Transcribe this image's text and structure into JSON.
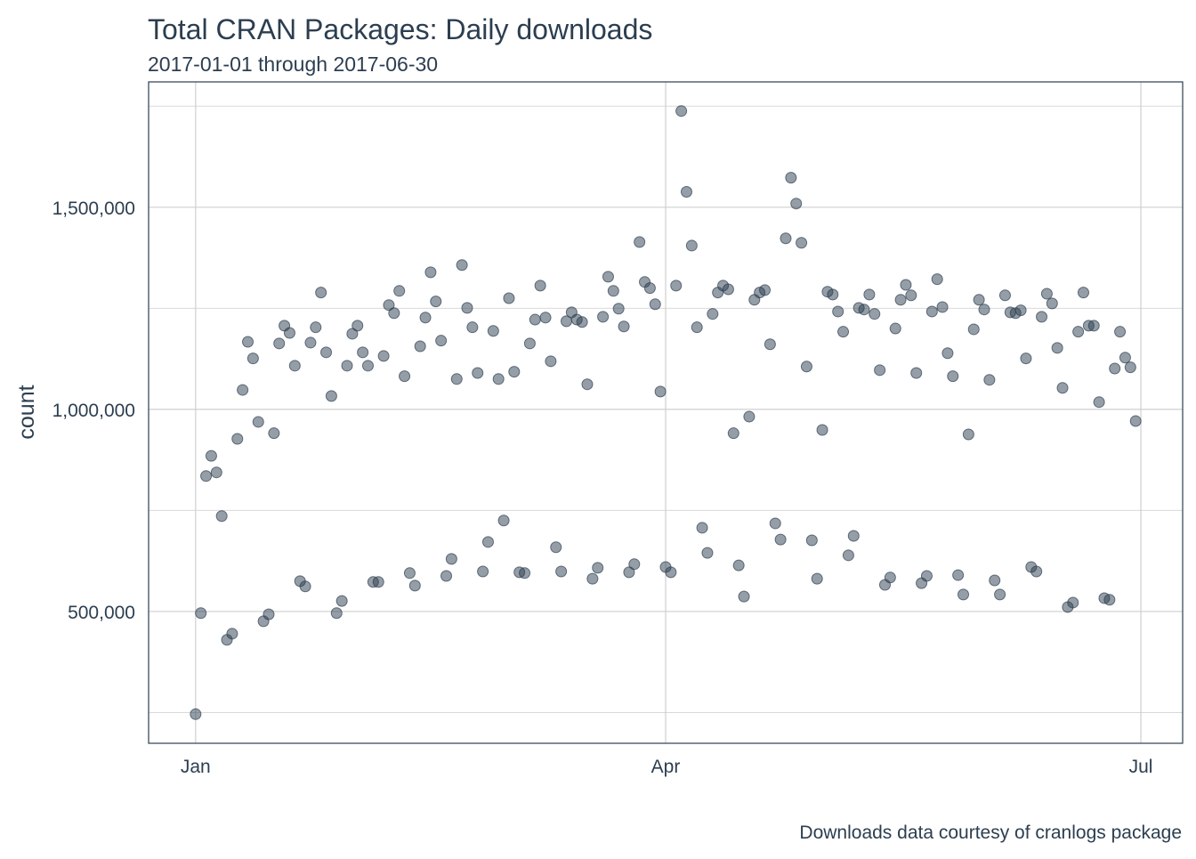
{
  "chart_data": {
    "type": "scatter",
    "title": "Total CRAN Packages: Daily downloads",
    "subtitle": "2017-01-01 through 2017-06-30",
    "y_label": "count",
    "caption": "Downloads data courtesy of cranlogs package",
    "color": "#2c3e50",
    "grid": true,
    "xlim": [
      "2016-12-23",
      "2017-07-09"
    ],
    "xticks": [
      {
        "value": "2017-01-01",
        "label": "Jan"
      },
      {
        "value": "2017-04-01",
        "label": "Apr"
      },
      {
        "value": "2017-07-01",
        "label": "Jul"
      }
    ],
    "ylim": [
      174000,
      1810000
    ],
    "yticks": [
      {
        "value": 500000,
        "label": "500,000"
      },
      {
        "value": 1000000,
        "label": "1,000,000"
      },
      {
        "value": 1500000,
        "label": "1,500,000"
      }
    ],
    "yminor": [
      250000,
      750000,
      1250000,
      1750000
    ],
    "x": [
      "2017-01-01",
      "2017-01-02",
      "2017-01-03",
      "2017-01-04",
      "2017-01-05",
      "2017-01-06",
      "2017-01-07",
      "2017-01-08",
      "2017-01-09",
      "2017-01-10",
      "2017-01-11",
      "2017-01-12",
      "2017-01-13",
      "2017-01-14",
      "2017-01-15",
      "2017-01-16",
      "2017-01-17",
      "2017-01-18",
      "2017-01-19",
      "2017-01-20",
      "2017-01-21",
      "2017-01-22",
      "2017-01-23",
      "2017-01-24",
      "2017-01-25",
      "2017-01-26",
      "2017-01-27",
      "2017-01-28",
      "2017-01-29",
      "2017-01-30",
      "2017-01-31",
      "2017-02-01",
      "2017-02-02",
      "2017-02-03",
      "2017-02-04",
      "2017-02-05",
      "2017-02-06",
      "2017-02-07",
      "2017-02-08",
      "2017-02-09",
      "2017-02-10",
      "2017-02-11",
      "2017-02-12",
      "2017-02-13",
      "2017-02-14",
      "2017-02-15",
      "2017-02-16",
      "2017-02-17",
      "2017-02-18",
      "2017-02-19",
      "2017-02-20",
      "2017-02-21",
      "2017-02-22",
      "2017-02-23",
      "2017-02-24",
      "2017-02-25",
      "2017-02-26",
      "2017-02-27",
      "2017-02-28",
      "2017-03-01",
      "2017-03-02",
      "2017-03-03",
      "2017-03-04",
      "2017-03-05",
      "2017-03-06",
      "2017-03-07",
      "2017-03-08",
      "2017-03-09",
      "2017-03-10",
      "2017-03-11",
      "2017-03-12",
      "2017-03-13",
      "2017-03-14",
      "2017-03-15",
      "2017-03-16",
      "2017-03-17",
      "2017-03-18",
      "2017-03-19",
      "2017-03-20",
      "2017-03-21",
      "2017-03-22",
      "2017-03-23",
      "2017-03-24",
      "2017-03-25",
      "2017-03-26",
      "2017-03-27",
      "2017-03-28",
      "2017-03-29",
      "2017-03-30",
      "2017-03-31",
      "2017-04-01",
      "2017-04-02",
      "2017-04-03",
      "2017-04-04",
      "2017-04-05",
      "2017-04-06",
      "2017-04-07",
      "2017-04-08",
      "2017-04-09",
      "2017-04-10",
      "2017-04-11",
      "2017-04-12",
      "2017-04-13",
      "2017-04-14",
      "2017-04-15",
      "2017-04-16",
      "2017-04-17",
      "2017-04-18",
      "2017-04-19",
      "2017-04-20",
      "2017-04-21",
      "2017-04-22",
      "2017-04-23",
      "2017-04-24",
      "2017-04-25",
      "2017-04-26",
      "2017-04-27",
      "2017-04-28",
      "2017-04-29",
      "2017-04-30",
      "2017-05-01",
      "2017-05-02",
      "2017-05-03",
      "2017-05-04",
      "2017-05-05",
      "2017-05-06",
      "2017-05-07",
      "2017-05-08",
      "2017-05-09",
      "2017-05-10",
      "2017-05-11",
      "2017-05-12",
      "2017-05-13",
      "2017-05-14",
      "2017-05-15",
      "2017-05-16",
      "2017-05-17",
      "2017-05-18",
      "2017-05-19",
      "2017-05-20",
      "2017-05-21",
      "2017-05-22",
      "2017-05-23",
      "2017-05-24",
      "2017-05-25",
      "2017-05-26",
      "2017-05-27",
      "2017-05-28",
      "2017-05-29",
      "2017-05-30",
      "2017-05-31",
      "2017-06-01",
      "2017-06-02",
      "2017-06-03",
      "2017-06-04",
      "2017-06-05",
      "2017-06-06",
      "2017-06-07",
      "2017-06-08",
      "2017-06-09",
      "2017-06-10",
      "2017-06-11",
      "2017-06-12",
      "2017-06-13",
      "2017-06-14",
      "2017-06-15",
      "2017-06-16",
      "2017-06-17",
      "2017-06-18",
      "2017-06-19",
      "2017-06-20",
      "2017-06-21",
      "2017-06-22",
      "2017-06-23",
      "2017-06-24",
      "2017-06-25",
      "2017-06-26",
      "2017-06-27",
      "2017-06-28",
      "2017-06-29",
      "2017-06-30"
    ],
    "values": [
      246000,
      496000,
      835000,
      885000,
      844000,
      736000,
      430000,
      445000,
      927000,
      1048000,
      1167000,
      1126000,
      969000,
      476000,
      493000,
      941000,
      1163000,
      1207000,
      1189000,
      1108000,
      575000,
      562000,
      1165000,
      1203000,
      1289000,
      1141000,
      1033000,
      496000,
      526000,
      1108000,
      1187000,
      1207000,
      1141000,
      1108000,
      573000,
      573000,
      1132000,
      1258000,
      1238000,
      1293000,
      1082000,
      595000,
      564000,
      1156000,
      1227000,
      1339000,
      1267000,
      1170000,
      588000,
      630000,
      1075000,
      1357000,
      1251000,
      1203000,
      1090000,
      599000,
      672000,
      1194000,
      1075000,
      725000,
      1275000,
      1093000,
      597000,
      595000,
      1163000,
      1222000,
      1306000,
      1227000,
      1119000,
      659000,
      599000,
      1218000,
      1240000,
      1222000,
      1216000,
      1062000,
      581000,
      608000,
      1229000,
      1328000,
      1293000,
      1249000,
      1205000,
      597000,
      617000,
      1414000,
      1315000,
      1300000,
      1260000,
      1044000,
      610000,
      597000,
      1306000,
      1738000,
      1538000,
      1405000,
      1203000,
      707000,
      645000,
      1236000,
      1289000,
      1306000,
      1297000,
      941000,
      614000,
      537000,
      982000,
      1271000,
      1289000,
      1295000,
      1161000,
      718000,
      678000,
      1423000,
      1573000,
      1509000,
      1412000,
      1106000,
      676000,
      581000,
      949000,
      1291000,
      1284000,
      1242000,
      1192000,
      639000,
      687000,
      1251000,
      1247000,
      1284000,
      1236000,
      1097000,
      566000,
      584000,
      1200000,
      1271000,
      1308000,
      1282000,
      1090000,
      570000,
      588000,
      1242000,
      1322000,
      1253000,
      1139000,
      1082000,
      590000,
      542000,
      938000,
      1198000,
      1271000,
      1247000,
      1073000,
      577000,
      542000,
      1282000,
      1240000,
      1238000,
      1245000,
      1126000,
      610000,
      599000,
      1229000,
      1286000,
      1262000,
      1152000,
      1053000,
      511000,
      522000,
      1192000,
      1289000,
      1207000,
      1207000,
      1018000,
      533000,
      529000,
      1101000,
      1192000,
      1128000,
      1104000,
      971000
    ]
  }
}
